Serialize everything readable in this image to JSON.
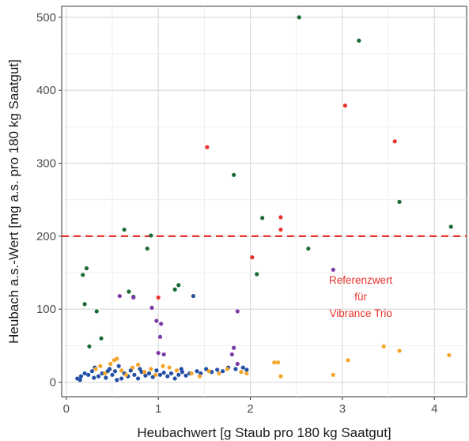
{
  "chart_data": {
    "type": "scatter",
    "title": "",
    "xlabel": "Heubachwert [g Staub pro 180 kg Saatgut]",
    "ylabel": "Heubach a.s.-Wert [mg a.s. pro 180 kg Saatgut]",
    "xlim": [
      -0.05,
      4.35
    ],
    "ylim": [
      -20,
      515
    ],
    "xticks": [
      0,
      1,
      2,
      3,
      4
    ],
    "yticks": [
      0,
      100,
      200,
      300,
      400,
      500
    ],
    "grid": true,
    "legend": "none",
    "reference_line": {
      "y": 200,
      "color": "#e8312a",
      "style": "dashed",
      "annotation": [
        "Referenzwert",
        "für",
        "Vibrance Trio"
      ],
      "annotation_at": [
        3.2,
        135
      ]
    },
    "series": [
      {
        "color": "#1a6b33",
        "points": [
          [
            0.18,
            147
          ],
          [
            0.22,
            156
          ],
          [
            0.2,
            107
          ],
          [
            0.25,
            49
          ],
          [
            0.33,
            97
          ],
          [
            0.38,
            60
          ],
          [
            0.63,
            209
          ],
          [
            0.68,
            124
          ],
          [
            0.73,
            117
          ],
          [
            0.88,
            183
          ],
          [
            0.92,
            201
          ],
          [
            1.18,
            127
          ],
          [
            1.22,
            133
          ],
          [
            1.82,
            284
          ],
          [
            2.07,
            148
          ],
          [
            2.13,
            225
          ],
          [
            2.53,
            500
          ],
          [
            2.63,
            183
          ],
          [
            3.18,
            468
          ],
          [
            3.62,
            247
          ],
          [
            4.18,
            213
          ]
        ]
      },
      {
        "color": "#e8312a",
        "points": [
          [
            1.53,
            322
          ],
          [
            2.02,
            171
          ],
          [
            2.33,
            226
          ],
          [
            2.33,
            209
          ],
          [
            3.03,
            379
          ],
          [
            3.57,
            330
          ],
          [
            1.0,
            116
          ]
        ]
      },
      {
        "color": "#7b3aa6",
        "points": [
          [
            0.58,
            118
          ],
          [
            0.73,
            116
          ],
          [
            0.93,
            102
          ],
          [
            0.98,
            84
          ],
          [
            1.03,
            80
          ],
          [
            1.02,
            62
          ],
          [
            1.0,
            40
          ],
          [
            1.06,
            38
          ],
          [
            1.8,
            38
          ],
          [
            1.82,
            47
          ],
          [
            1.86,
            97
          ],
          [
            1.86,
            25
          ],
          [
            2.9,
            154
          ]
        ]
      },
      {
        "color": "#2350a5",
        "points": [
          [
            0.12,
            5
          ],
          [
            0.16,
            8
          ],
          [
            0.2,
            12
          ],
          [
            0.24,
            10
          ],
          [
            0.28,
            15
          ],
          [
            0.31,
            20
          ],
          [
            0.35,
            8
          ],
          [
            0.39,
            12
          ],
          [
            0.43,
            6
          ],
          [
            0.47,
            18
          ],
          [
            0.5,
            10
          ],
          [
            0.53,
            15
          ],
          [
            0.57,
            22
          ],
          [
            0.6,
            5
          ],
          [
            0.63,
            12
          ],
          [
            0.67,
            8
          ],
          [
            0.7,
            16
          ],
          [
            0.74,
            10
          ],
          [
            0.78,
            5
          ],
          [
            0.82,
            14
          ],
          [
            0.86,
            9
          ],
          [
            0.9,
            12
          ],
          [
            0.94,
            7
          ],
          [
            0.98,
            16
          ],
          [
            1.02,
            10
          ],
          [
            1.06,
            13
          ],
          [
            1.1,
            8
          ],
          [
            1.14,
            12
          ],
          [
            1.18,
            5
          ],
          [
            1.22,
            10
          ],
          [
            1.26,
            14
          ],
          [
            1.3,
            9
          ],
          [
            1.34,
            12
          ],
          [
            1.38,
            118
          ],
          [
            1.42,
            15
          ],
          [
            1.46,
            12
          ],
          [
            1.52,
            18
          ],
          [
            1.58,
            14
          ],
          [
            1.64,
            17
          ],
          [
            1.7,
            15
          ],
          [
            1.76,
            20
          ],
          [
            1.84,
            18
          ],
          [
            1.92,
            20
          ],
          [
            1.96,
            17
          ],
          [
            0.45,
            15
          ],
          [
            0.55,
            3
          ],
          [
            0.8,
            18
          ],
          [
            1.25,
            18
          ],
          [
            0.15,
            3
          ],
          [
            0.3,
            6
          ]
        ]
      },
      {
        "color": "#f4a62a",
        "points": [
          [
            0.32,
            18
          ],
          [
            0.37,
            22
          ],
          [
            0.42,
            12
          ],
          [
            0.48,
            25
          ],
          [
            0.52,
            30
          ],
          [
            0.55,
            32
          ],
          [
            0.6,
            16
          ],
          [
            0.65,
            10
          ],
          [
            0.72,
            20
          ],
          [
            0.78,
            24
          ],
          [
            0.85,
            14
          ],
          [
            0.92,
            18
          ],
          [
            0.97,
            10
          ],
          [
            1.05,
            22
          ],
          [
            1.12,
            20
          ],
          [
            1.2,
            16
          ],
          [
            1.36,
            12
          ],
          [
            1.45,
            8
          ],
          [
            1.55,
            15
          ],
          [
            1.66,
            12
          ],
          [
            1.75,
            18
          ],
          [
            1.9,
            14
          ],
          [
            1.96,
            12
          ],
          [
            2.26,
            27
          ],
          [
            2.3,
            27
          ],
          [
            2.33,
            8
          ],
          [
            2.9,
            10
          ],
          [
            3.06,
            30
          ],
          [
            3.45,
            49
          ],
          [
            3.62,
            43
          ],
          [
            4.16,
            37
          ]
        ]
      }
    ]
  }
}
